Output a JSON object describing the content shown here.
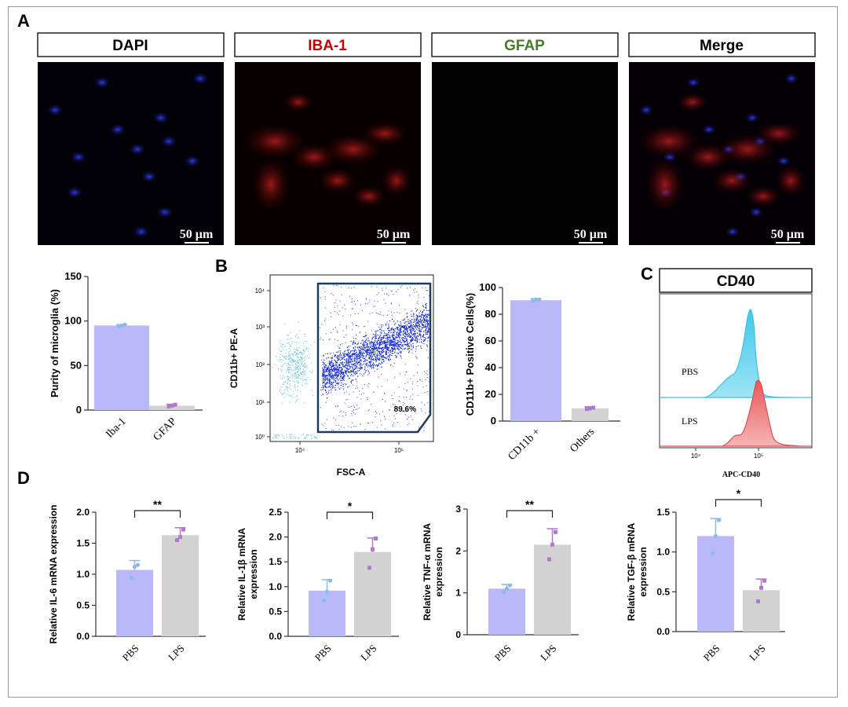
{
  "panels": {
    "A": "A",
    "B": "B",
    "C": "C",
    "D": "D"
  },
  "micrographs": [
    {
      "label": "DAPI",
      "color": "#000000",
      "scale_bar": "50 µm"
    },
    {
      "label": "IBA-1",
      "color": "#c00000",
      "scale_bar": "50 µm"
    },
    {
      "label": "GFAP",
      "color": "#4a7a2c",
      "scale_bar": "50 µm"
    },
    {
      "label": "Merge",
      "color": "#000000",
      "scale_bar": "50 µm"
    }
  ],
  "colors": {
    "bar_a": "#b9b9f7",
    "bar_b": "#d3d3d3",
    "dot_a": "#8dbbe6",
    "dot_b": "#b07acb",
    "pbs_fill": "#60d4ee",
    "lps_fill": "#f08080",
    "gate": "#1e3a5f",
    "dots_main": "#1a2fd0",
    "dots_neg": "#6ec6d6"
  },
  "chart_data": [
    {
      "id": "purity",
      "type": "bar",
      "categories": [
        "Iba-1",
        "GFAP"
      ],
      "values": [
        95,
        5
      ],
      "errors": [
        1,
        1.5
      ],
      "points": [
        [
          94,
          95,
          96
        ],
        [
          4,
          5,
          6
        ]
      ],
      "ylabel": "Purity of microglia (%)",
      "ylim": [
        0,
        150
      ],
      "yticks": [
        "0",
        "50",
        "100",
        "150"
      ]
    },
    {
      "id": "flow",
      "type": "scatter",
      "xlabel": "FSC-A",
      "ylabel": "CD11b+ PE-A",
      "xticks": [
        "10⁴",
        "10⁵"
      ],
      "yticks": [
        "10⁰",
        "10¹",
        "10²",
        "10³",
        "10⁴"
      ],
      "gate_label": "89.6%"
    },
    {
      "id": "cd11b",
      "type": "bar",
      "categories": [
        "CD11b +",
        "Others"
      ],
      "values": [
        90.5,
        9.5
      ],
      "errors": [
        1.2,
        1.2
      ],
      "points": [
        [
          90,
          91,
          91
        ],
        [
          9,
          9.5,
          10
        ]
      ],
      "ylabel": "CD11b+ Positive Cells(%)",
      "ylim": [
        0,
        100
      ],
      "yticks": [
        "0",
        "20",
        "40",
        "60",
        "80",
        "100"
      ]
    },
    {
      "id": "cd40",
      "type": "area",
      "title": "CD40",
      "xlabel": "APC-CD40",
      "xticks": [
        "10⁴",
        "10⁵"
      ],
      "series": [
        {
          "name": "PBS"
        },
        {
          "name": "LPS"
        }
      ]
    },
    {
      "id": "il6",
      "type": "bar",
      "categories": [
        "PBS",
        "LPS"
      ],
      "values": [
        1.07,
        1.63
      ],
      "errors": [
        0.15,
        0.12
      ],
      "points": [
        [
          0.95,
          1.12,
          1.15
        ],
        [
          1.55,
          1.6,
          1.72
        ]
      ],
      "ylabel_lines": [
        "Relative IL-6 mRNA expression"
      ],
      "ylim": [
        0,
        2.0
      ],
      "yticks": [
        "0.0",
        "0.5",
        "1.0",
        "1.5",
        "2.0"
      ],
      "sig": "**"
    },
    {
      "id": "il1b",
      "type": "bar",
      "categories": [
        "PBS",
        "LPS"
      ],
      "values": [
        0.92,
        1.7
      ],
      "errors": [
        0.22,
        0.28
      ],
      "points": [
        [
          0.72,
          0.9,
          1.12
        ],
        [
          1.38,
          1.75,
          1.97
        ]
      ],
      "ylabel_lines": [
        "Relative IL-1β mRNA",
        "expression"
      ],
      "ylim": [
        0,
        2.5
      ],
      "yticks": [
        "0.0",
        "0.5",
        "1.0",
        "1.5",
        "2.0",
        "2.5"
      ],
      "sig": "*"
    },
    {
      "id": "tnfa",
      "type": "bar",
      "categories": [
        "PBS",
        "LPS"
      ],
      "values": [
        1.1,
        2.15
      ],
      "errors": [
        0.1,
        0.38
      ],
      "points": [
        [
          1.02,
          1.1,
          1.18
        ],
        [
          1.8,
          2.15,
          2.45
        ]
      ],
      "ylabel_lines": [
        "Relative TNF-α mRNA",
        "expression"
      ],
      "ylim": [
        0,
        3
      ],
      "yticks": [
        "0",
        "1",
        "2",
        "3"
      ],
      "sig": "**"
    },
    {
      "id": "tgfb",
      "type": "bar",
      "categories": [
        "PBS",
        "LPS"
      ],
      "values": [
        1.2,
        0.52
      ],
      "errors": [
        0.22,
        0.14
      ],
      "points": [
        [
          0.98,
          1.2,
          1.4
        ],
        [
          0.38,
          0.55,
          0.64
        ]
      ],
      "ylabel_lines": [
        "Relative TGF-β mRNA",
        "expression"
      ],
      "ylim": [
        0,
        1.5
      ],
      "yticks": [
        "0.0",
        "0.5",
        "1.0",
        "1.5"
      ],
      "sig": "*"
    }
  ]
}
